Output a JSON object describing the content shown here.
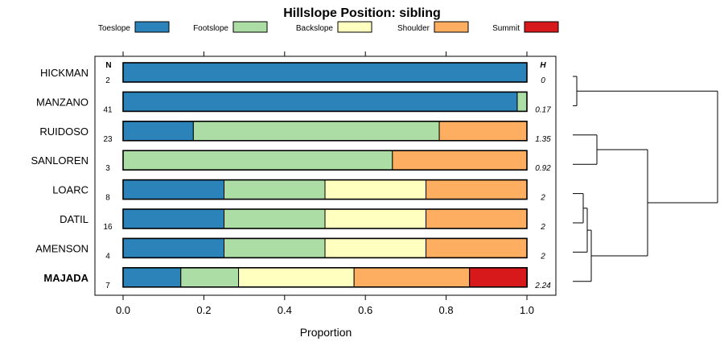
{
  "chart_data": {
    "type": "bar",
    "stacked": true,
    "horizontal": true,
    "title": "Hillslope Position: sibling",
    "xlabel": "Proportion",
    "xlim": [
      0,
      1
    ],
    "x_ticks": [
      "0.0",
      "0.2",
      "0.4",
      "0.6",
      "0.8",
      "1.0"
    ],
    "n_header": "N",
    "h_header": "H",
    "legend_position": "top",
    "series": [
      {
        "name": "Toeslope",
        "color": "#2b83ba"
      },
      {
        "name": "Footslope",
        "color": "#abdda4"
      },
      {
        "name": "Backslope",
        "color": "#ffffbf"
      },
      {
        "name": "Shoulder",
        "color": "#fdae61"
      },
      {
        "name": "Summit",
        "color": "#d7191c"
      }
    ],
    "rows": [
      {
        "label": "HICKMAN",
        "n": "2",
        "h": "0",
        "values": [
          1.0,
          0,
          0,
          0,
          0
        ],
        "bold": false
      },
      {
        "label": "MANZANO",
        "n": "41",
        "h": "0.17",
        "values": [
          0.976,
          0.024,
          0,
          0,
          0
        ],
        "bold": false
      },
      {
        "label": "RUIDOSO",
        "n": "23",
        "h": "1.35",
        "values": [
          0.174,
          0.609,
          0,
          0.217,
          0
        ],
        "bold": false
      },
      {
        "label": "SANLOREN",
        "n": "3",
        "h": "0.92",
        "values": [
          0,
          0.667,
          0,
          0.333,
          0
        ],
        "bold": false
      },
      {
        "label": "LOARC",
        "n": "8",
        "h": "2",
        "values": [
          0.25,
          0.25,
          0.25,
          0.25,
          0
        ],
        "bold": false
      },
      {
        "label": "DATIL",
        "n": "16",
        "h": "2",
        "values": [
          0.25,
          0.25,
          0.25,
          0.25,
          0
        ],
        "bold": false
      },
      {
        "label": "AMENSON",
        "n": "4",
        "h": "2",
        "values": [
          0.25,
          0.25,
          0.25,
          0.25,
          0
        ],
        "bold": false
      },
      {
        "label": "MAJADA",
        "n": "7",
        "h": "2.24",
        "values": [
          0.143,
          0.143,
          0.286,
          0.286,
          0.143
        ],
        "bold": true
      }
    ],
    "dendrogram": true
  }
}
